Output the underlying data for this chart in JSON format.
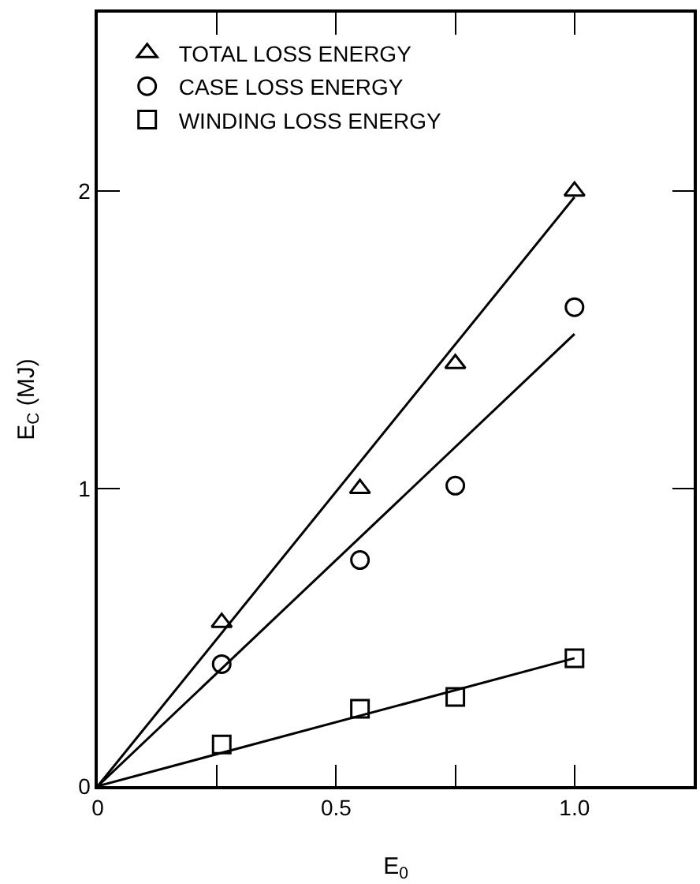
{
  "chart_data": {
    "type": "scatter",
    "xlabel": "E$_{0}$",
    "ylabel": "E$_{C}$ (MJ)",
    "xlim": [
      0,
      1.25
    ],
    "ylim": [
      0,
      2.6
    ],
    "xticks": [
      0,
      {
        "value": 0.25,
        "label": null
      },
      0.5,
      {
        "value": 0.75,
        "label": null
      },
      {
        "value": 1,
        "label": "1.0"
      }
    ],
    "yticks": [
      0,
      1,
      2
    ],
    "grid": false,
    "legend": "top left",
    "series": [
      {
        "name": "TOTAL LOSS ENERGY",
        "color": "#000000",
        "marker": "triangle",
        "x": [
          0.26,
          0.55,
          0.75,
          1.0
        ],
        "values": [
          0.55,
          1.0,
          1.42,
          2.0
        ]
      },
      {
        "name": "CASE LOSS ENERGY",
        "color": "#000000",
        "marker": "circle",
        "x": [
          0.26,
          0.55,
          0.75,
          1.0
        ],
        "values": [
          0.41,
          0.76,
          1.01,
          1.61
        ]
      },
      {
        "name": "WINDING LOSS ENERGY",
        "color": "#000000",
        "marker": "square",
        "x": [
          0.26,
          0.55,
          0.75,
          1.0
        ],
        "values": [
          0.14,
          0.26,
          0.3,
          0.43
        ]
      },
      {
        "type": "line",
        "color": "#000000",
        "marker": "none",
        "line_style": "solid",
        "x": [
          0,
          1.0
        ],
        "values": [
          0,
          1.98
        ]
      },
      {
        "type": "line",
        "color": "#000000",
        "marker": "none",
        "line_style": "solid",
        "x": [
          0,
          1.0
        ],
        "values": [
          0,
          1.52
        ]
      },
      {
        "type": "line",
        "color": "#000000",
        "marker": "none",
        "line_style": "solid",
        "x": [
          0,
          1.0
        ],
        "values": [
          0,
          0.43
        ]
      }
    ]
  }
}
